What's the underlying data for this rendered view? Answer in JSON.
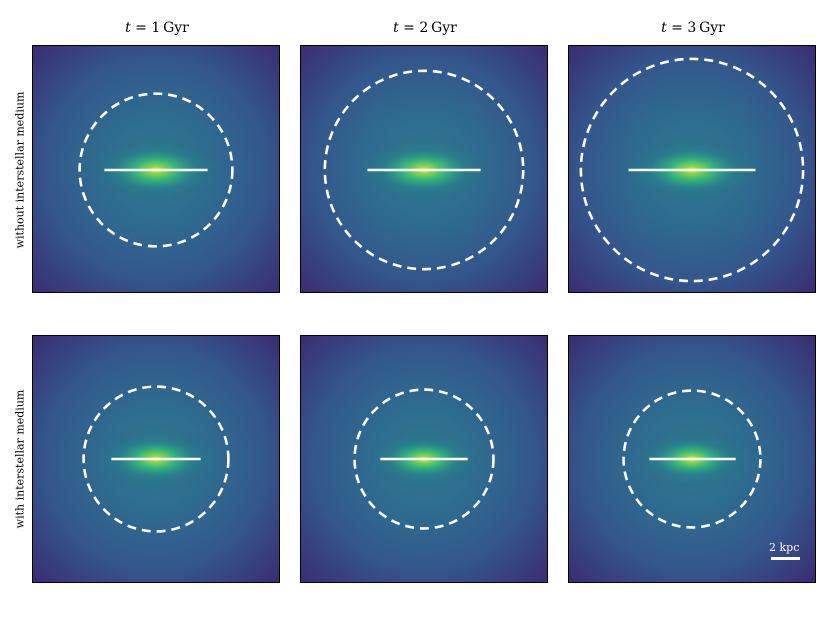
{
  "columns": [
    {
      "t_label": "t",
      "eq": " = ",
      "value": "1",
      "unit": "Gyr"
    },
    {
      "t_label": "t",
      "eq": " = ",
      "value": "2",
      "unit": "Gyr"
    },
    {
      "t_label": "t",
      "eq": " = ",
      "value": "3",
      "unit": "Gyr"
    }
  ],
  "rows": [
    {
      "label": "without interstellar medium"
    },
    {
      "label": "with interstellar medium"
    }
  ],
  "scale_bar": {
    "label": "2 kpc",
    "length_kpc": 2
  },
  "colors": {
    "background_dark": "#3b2a73",
    "mid": "#2f6d8e",
    "glow": "#3fb88a",
    "core": "#f6e93b",
    "overlay": "#ffffff"
  },
  "colormap": "viridis"
}
